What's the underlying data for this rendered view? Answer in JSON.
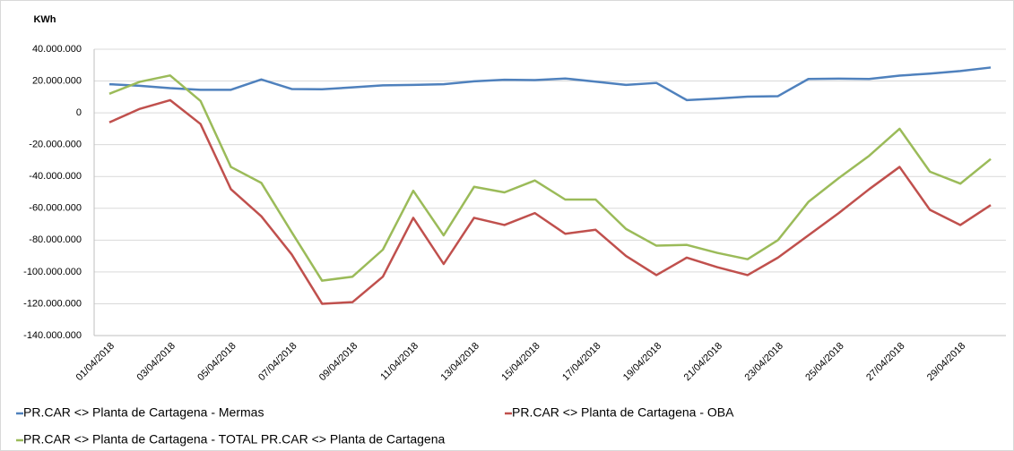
{
  "chart_data": {
    "type": "line",
    "title": "KWh",
    "categories": [
      "01/04/2018",
      null,
      "03/04/2018",
      null,
      "05/04/2018",
      null,
      "07/04/2018",
      null,
      "09/04/2018",
      null,
      "11/04/2018",
      null,
      "13/04/2018",
      null,
      "15/04/2018",
      null,
      "17/04/2018",
      null,
      "19/04/2018",
      null,
      "21/04/2018",
      null,
      "23/04/2018",
      null,
      "25/04/2018",
      null,
      "27/04/2018",
      null,
      "29/04/2018",
      null
    ],
    "series": [
      {
        "name": "PR.CAR <> Planta de Cartagena - Mermas",
        "color": "#4f81bd",
        "values": [
          18000000,
          17000000,
          15500000,
          14500000,
          14500000,
          21000000,
          15000000,
          14800000,
          16000000,
          17300000,
          17600000,
          18000000,
          19800000,
          20800000,
          20600000,
          21600000,
          19600000,
          17600000,
          18800000,
          8000000,
          9000000,
          10200000,
          10500000,
          21300000,
          21500000,
          21300000,
          23400000,
          24700000,
          26300000,
          28500000
        ]
      },
      {
        "name": "PR.CAR <> Planta de Cartagena - OBA",
        "color": "#c0504d",
        "values": [
          -6000000,
          2500000,
          8000000,
          -7000000,
          -48000000,
          -65000000,
          -89000000,
          -120000000,
          -119000000,
          -103000000,
          -66000000,
          -95000000,
          -66000000,
          -70500000,
          -63000000,
          -76000000,
          -73500000,
          -90000000,
          -102000000,
          -91000000,
          -97000000,
          -102000000,
          -91000000,
          -77000000,
          -63000000,
          -48000000,
          -34000000,
          -61000000,
          -70500000,
          -58000000
        ]
      },
      {
        "name": "PR.CAR <> Planta de Cartagena - TOTAL PR.CAR <> Planta de Cartagena",
        "color": "#9bbb59",
        "values": [
          12000000,
          19500000,
          23500000,
          7500000,
          -34000000,
          -44000000,
          -75000000,
          -105500000,
          -103000000,
          -86000000,
          -49000000,
          -77000000,
          -46500000,
          -50000000,
          -42500000,
          -54500000,
          -54500000,
          -73000000,
          -83500000,
          -83000000,
          -88000000,
          -92000000,
          -80000000,
          -56000000,
          -41000000,
          -27000000,
          -10000000,
          -37000000,
          -44500000,
          -29000000
        ]
      }
    ],
    "ylim": [
      -140000000,
      40000000
    ],
    "yticks": [
      {
        "value": -140000000,
        "label": "-140.000.000"
      },
      {
        "value": -120000000,
        "label": "-120.000.000"
      },
      {
        "value": -100000000,
        "label": "-100.000.000"
      },
      {
        "value": -80000000,
        "label": "-80.000.000"
      },
      {
        "value": -60000000,
        "label": "-60.000.000"
      },
      {
        "value": -40000000,
        "label": "-40.000.000"
      },
      {
        "value": -20000000,
        "label": "-20.000.000"
      },
      0,
      {
        "value": 20000000,
        "label": "20.000.000"
      },
      {
        "value": 40000000,
        "label": "40.000.000"
      }
    ],
    "grid": true
  }
}
